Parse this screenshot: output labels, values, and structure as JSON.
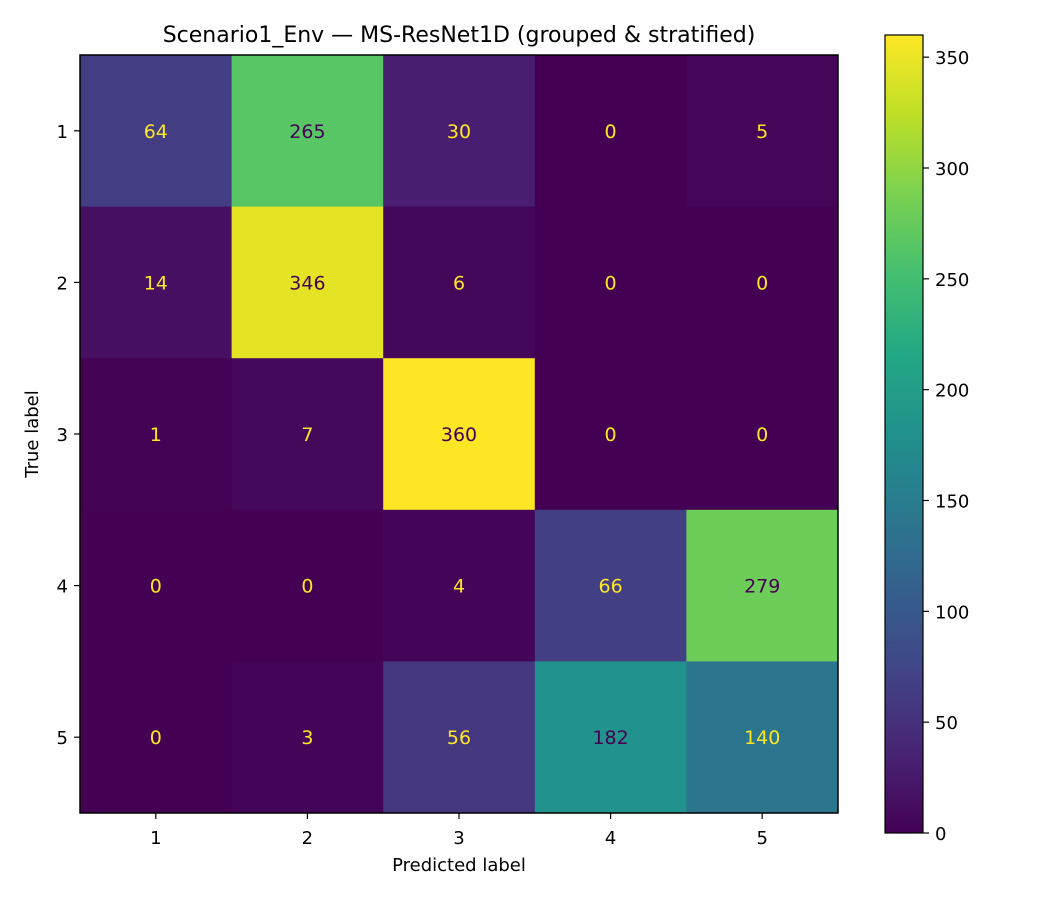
{
  "chart_data": {
    "type": "heatmap",
    "title": "Scenario1_Env — MS-ResNet1D (grouped & stratified)",
    "xlabel": "Predicted label",
    "ylabel": "True label",
    "x_categories": [
      "1",
      "2",
      "3",
      "4",
      "5"
    ],
    "y_categories": [
      "1",
      "2",
      "3",
      "4",
      "5"
    ],
    "matrix": [
      [
        64,
        265,
        30,
        0,
        5
      ],
      [
        14,
        346,
        6,
        0,
        0
      ],
      [
        1,
        7,
        360,
        0,
        0
      ],
      [
        0,
        0,
        4,
        66,
        279
      ],
      [
        0,
        3,
        56,
        182,
        140
      ]
    ],
    "colormap": "viridis",
    "colorbar": {
      "vmin": 0,
      "vmax": 360,
      "ticks": [
        0,
        50,
        100,
        150,
        200,
        250,
        300,
        350
      ],
      "tick_labels": [
        "0",
        "50",
        "100",
        "150",
        "200",
        "250",
        "300",
        "350"
      ]
    },
    "text_colors": {
      "light": "#fde725",
      "dark": "#440154"
    },
    "grid": false
  }
}
